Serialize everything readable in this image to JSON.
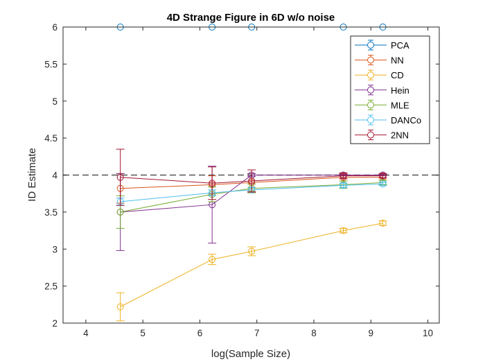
{
  "chart_data": {
    "type": "line",
    "title": "4D Strange Figure in 6D w/o noise",
    "xlabel": "log(Sample Size)",
    "ylabel": "ID Estimate",
    "xlim": [
      3.6,
      10.2
    ],
    "ylim": [
      2,
      6
    ],
    "xticks": [
      4,
      5,
      6,
      7,
      8,
      9,
      10
    ],
    "yticks": [
      2,
      2.5,
      3,
      3.5,
      4,
      4.5,
      5,
      5.5,
      6
    ],
    "ytick_labels": [
      "2",
      "2.5",
      "3",
      "3.5",
      "4",
      "4.5",
      "5",
      "5.5",
      "6"
    ],
    "reference_line": 4,
    "grid": false,
    "legend_position": "top-right",
    "x": [
      4.605,
      6.215,
      6.908,
      8.517,
      9.21
    ],
    "series": [
      {
        "name": "PCA",
        "color": "#0072BD",
        "values": [
          6,
          6,
          6,
          6,
          6
        ],
        "errors": [
          0,
          0,
          0,
          0,
          0
        ]
      },
      {
        "name": "NN",
        "color": "#D95319",
        "values": [
          3.82,
          3.87,
          3.9,
          3.97,
          3.97
        ],
        "errors": [
          0.2,
          0.12,
          0.12,
          0.05,
          0.04
        ]
      },
      {
        "name": "CD",
        "color": "#EDB120",
        "values": [
          2.22,
          2.86,
          2.97,
          3.25,
          3.35
        ],
        "errors": [
          0.19,
          0.07,
          0.06,
          0.03,
          0.03
        ]
      },
      {
        "name": "Hein",
        "color": "#7E2F8E",
        "values": [
          3.5,
          3.6,
          4.0,
          4.0,
          4.0
        ],
        "errors": [
          0.52,
          0.52,
          0.02,
          0.01,
          0.01
        ]
      },
      {
        "name": "MLE",
        "color": "#77AC30",
        "values": [
          3.5,
          3.74,
          3.82,
          3.87,
          3.9
        ],
        "errors": [
          0.22,
          0.1,
          0.06,
          0.05,
          0.03
        ]
      },
      {
        "name": "DANCo",
        "color": "#4DBEEE",
        "values": [
          3.64,
          3.76,
          3.8,
          3.86,
          3.88
        ],
        "errors": [
          0.05,
          0.04,
          0.03,
          0.03,
          0.02
        ]
      },
      {
        "name": "2NN",
        "color": "#A2142F",
        "values": [
          3.97,
          3.89,
          3.92,
          3.99,
          3.99
        ],
        "errors": [
          0.38,
          0.22,
          0.15,
          0.04,
          0.03
        ]
      }
    ]
  }
}
